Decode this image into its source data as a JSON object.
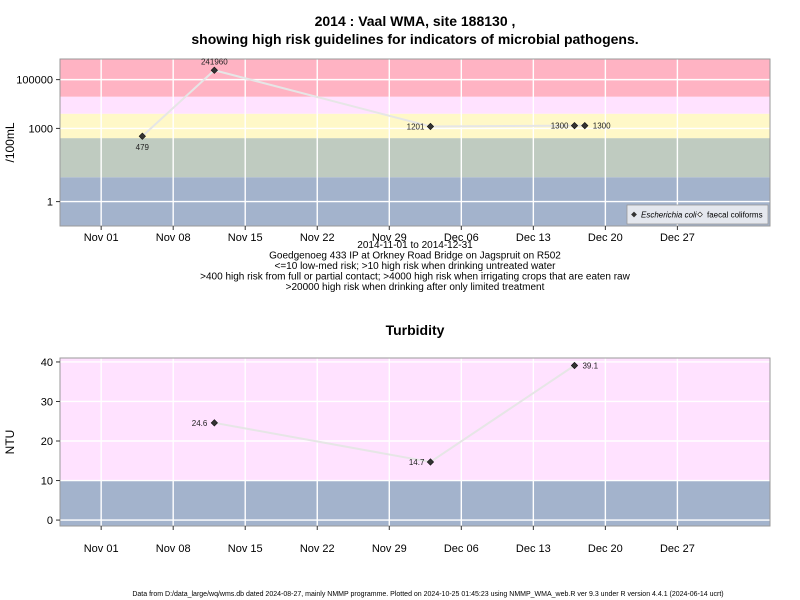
{
  "chart_data": [
    {
      "type": "line",
      "title_lines": [
        "2014 : Vaal WMA, site 188130 ,",
        "showing high risk guidelines for indicators of microbial pathogens."
      ],
      "subtitle_lines": [
        "2014-11-01 to 2014-12-31",
        "Goedgenoeg 433 IP at Orkney Road Bridge on Jagspruit on R502",
        "<=10 low-med risk; >10 high risk when drinking untreated water",
        ">400 high risk from full or partial contact; >4000 high risk when irrigating crops that are eaten raw",
        ">20000 high risk when drinking after only limited treatment"
      ],
      "ylabel": "/100mL",
      "y_scale": "log",
      "ylim": [
        0.1,
        700000
      ],
      "xlim": [
        "2014-10-28",
        "2015-01-05"
      ],
      "x_ticks": [
        {
          "date": "2014-11-01",
          "label": "Nov 01"
        },
        {
          "date": "2014-11-08",
          "label": "Nov 08"
        },
        {
          "date": "2014-11-15",
          "label": "Nov 15"
        },
        {
          "date": "2014-11-22",
          "label": "Nov 22"
        },
        {
          "date": "2014-11-29",
          "label": "Nov 29"
        },
        {
          "date": "2014-12-06",
          "label": "Dec 06"
        },
        {
          "date": "2014-12-13",
          "label": "Dec 13"
        },
        {
          "date": "2014-12-20",
          "label": "Dec 20"
        },
        {
          "date": "2014-12-27",
          "label": "Dec 27"
        }
      ],
      "y_ticks": [
        {
          "value": 1,
          "label": "1"
        },
        {
          "value": 1000,
          "label": "1000"
        },
        {
          "value": 100000,
          "label": "100000"
        }
      ],
      "bands": [
        {
          "from": 0.1,
          "to": 10,
          "color": "#a3b3cc"
        },
        {
          "from": 10,
          "to": 400,
          "color": "#bfcbc0"
        },
        {
          "from": 400,
          "to": 4000,
          "color": "#fff8c8"
        },
        {
          "from": 4000,
          "to": 20000,
          "color": "#ffe2ff"
        },
        {
          "from": 20000,
          "to": 700000,
          "color": "#ffb3c3"
        }
      ],
      "grid": true,
      "legend_position": "bottom-right",
      "series": [
        {
          "name": "Escherichia coli",
          "marker": "filled-diamond",
          "points": [
            {
              "x": "2014-11-05",
              "y": 479,
              "label": "479"
            },
            {
              "x": "2014-11-12",
              "y": 241960,
              "label": "241960"
            },
            {
              "x": "2014-12-03",
              "y": 1201,
              "label": "1201"
            },
            {
              "x": "2014-12-17",
              "y": 1300,
              "label": "1300"
            },
            {
              "x": "2014-12-18",
              "y": 1300,
              "label": "1300"
            }
          ]
        },
        {
          "name": "faecal coliforms",
          "marker": "open-diamond",
          "points": []
        }
      ]
    },
    {
      "type": "line",
      "title_lines": [
        "Turbidity"
      ],
      "ylabel": "NTU",
      "y_scale": "linear",
      "ylim": [
        -1.5,
        41
      ],
      "xlim": [
        "2014-10-28",
        "2015-01-05"
      ],
      "x_ticks": [
        {
          "date": "2014-11-01",
          "label": "Nov 01"
        },
        {
          "date": "2014-11-08",
          "label": "Nov 08"
        },
        {
          "date": "2014-11-15",
          "label": "Nov 15"
        },
        {
          "date": "2014-11-22",
          "label": "Nov 22"
        },
        {
          "date": "2014-11-29",
          "label": "Nov 29"
        },
        {
          "date": "2014-12-06",
          "label": "Dec 06"
        },
        {
          "date": "2014-12-13",
          "label": "Dec 13"
        },
        {
          "date": "2014-12-20",
          "label": "Dec 20"
        },
        {
          "date": "2014-12-27",
          "label": "Dec 27"
        }
      ],
      "y_ticks": [
        {
          "value": 0,
          "label": "0"
        },
        {
          "value": 10,
          "label": "10"
        },
        {
          "value": 20,
          "label": "20"
        },
        {
          "value": 30,
          "label": "30"
        },
        {
          "value": 40,
          "label": "40"
        }
      ],
      "bands": [
        {
          "from": -1.5,
          "to": 10,
          "color": "#a3b3cc"
        },
        {
          "from": 10,
          "to": 41,
          "color": "#ffe2ff"
        }
      ],
      "grid": true,
      "series": [
        {
          "name": "",
          "marker": "filled-diamond",
          "points": [
            {
              "x": "2014-11-12",
              "y": 24.6,
              "label": "24.6"
            },
            {
              "x": "2014-12-03",
              "y": 14.7,
              "label": "14.7"
            },
            {
              "x": "2014-12-17",
              "y": 39.1,
              "label": "39.1"
            }
          ]
        }
      ]
    }
  ],
  "footer": "Data from D:/data_large/wq/wms.db dated 2024-08-27, mainly NMMP programme. Plotted on 2024-10-25 01:45:23 using NMMP_WMA_web.R ver 9.3 under R version 4.4.1 (2024-06-14 ucrt)"
}
